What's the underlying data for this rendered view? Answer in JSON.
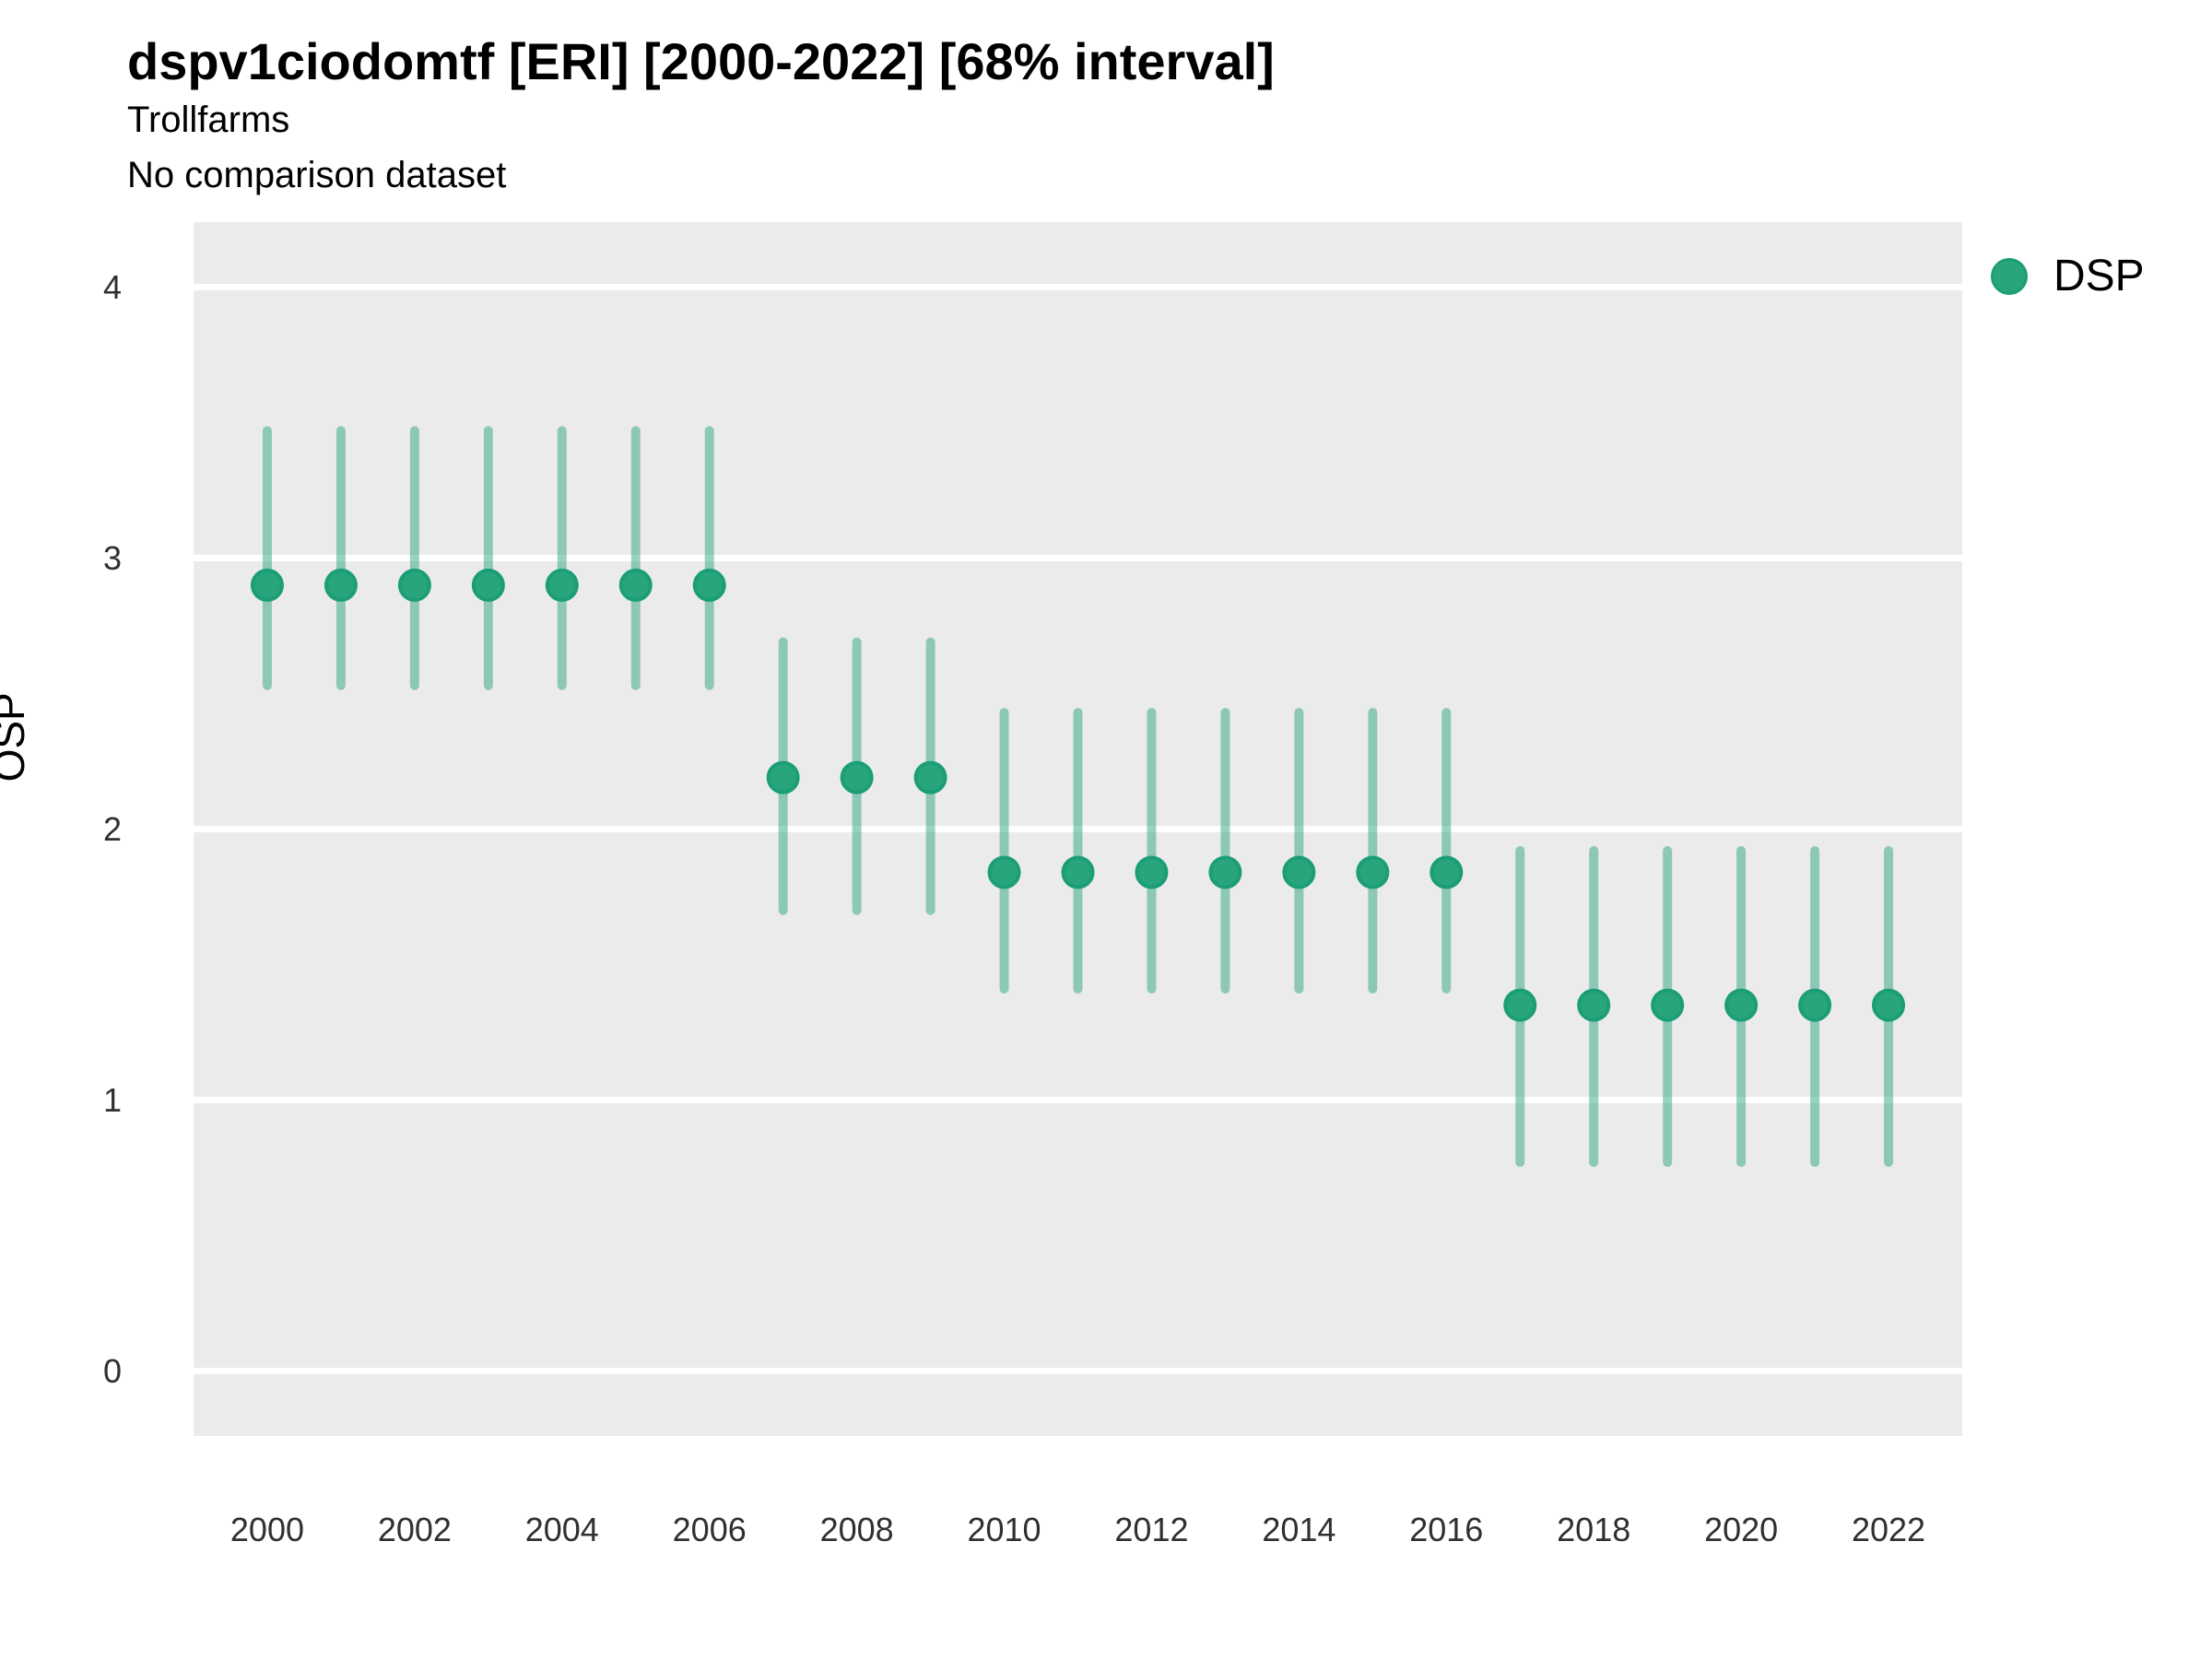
{
  "header": {
    "title": "dspv1ciodomtf [ERI] [2000-2022] [68% interval]",
    "subtitle": "Trollfarms",
    "comparison_note": "No comparison dataset"
  },
  "chart_data": {
    "type": "scatter",
    "title": "dspv1ciodomtf [ERI] [2000-2022] [68% interval]",
    "subtitle": "Trollfarms",
    "annotation": "No comparison dataset",
    "interval": "68% interval",
    "xlabel": "",
    "ylabel": "OSP",
    "x_ticks": [
      2000,
      2002,
      2004,
      2006,
      2008,
      2010,
      2012,
      2014,
      2016,
      2018,
      2020,
      2022
    ],
    "y_ticks": [
      0,
      1,
      2,
      3,
      4
    ],
    "xlim": [
      1999,
      2023
    ],
    "ylim": [
      -0.24,
      4.24
    ],
    "grid": "white major gridlines on light gray panel",
    "legend_position": "right",
    "series": [
      {
        "name": "DSP",
        "x": [
          2000,
          2001,
          2002,
          2003,
          2004,
          2005,
          2006,
          2007,
          2008,
          2009,
          2010,
          2011,
          2012,
          2013,
          2014,
          2015,
          2016,
          2017,
          2018,
          2019,
          2020,
          2021,
          2022
        ],
        "y": [
          2.9,
          2.9,
          2.9,
          2.9,
          2.9,
          2.9,
          2.9,
          2.19,
          2.19,
          2.19,
          1.84,
          1.84,
          1.84,
          1.84,
          1.84,
          1.84,
          1.84,
          1.35,
          1.35,
          1.35,
          1.35,
          1.35,
          1.35
        ],
        "y_lo": [
          2.53,
          2.53,
          2.53,
          2.53,
          2.53,
          2.53,
          2.53,
          1.7,
          1.7,
          1.7,
          1.41,
          1.41,
          1.41,
          1.41,
          1.41,
          1.41,
          1.41,
          0.77,
          0.77,
          0.77,
          0.77,
          0.77,
          0.77
        ],
        "y_hi": [
          3.47,
          3.47,
          3.47,
          3.47,
          3.47,
          3.47,
          3.47,
          2.69,
          2.69,
          2.69,
          2.43,
          2.43,
          2.43,
          2.43,
          2.43,
          2.43,
          2.43,
          1.92,
          1.92,
          1.92,
          1.92,
          1.92,
          1.92
        ]
      }
    ]
  },
  "legend": {
    "entries": [
      {
        "label": "DSP",
        "color": "#29a57c"
      }
    ]
  },
  "colors": {
    "point_fill": "#29a57c",
    "point_stroke": "#1b9e77",
    "errorbar": "rgba(27,158,119,0.45)",
    "panel_bg": "#ebebeb",
    "gridline": "#ffffff",
    "tick_text": "#303030",
    "text": "#000000"
  }
}
